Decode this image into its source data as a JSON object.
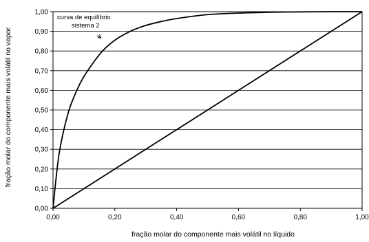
{
  "chart_data": {
    "type": "line",
    "title": "",
    "xlabel": "fração molar do componente mais volátil no líquido",
    "ylabel": "fração molar do componente mais volátil no vapor",
    "xlim": [
      0,
      1
    ],
    "ylim": [
      0,
      1
    ],
    "x_ticks": [
      "0,00",
      "0,20",
      "0,40",
      "0,60",
      "0,80",
      "1,00"
    ],
    "y_ticks": [
      "0,00",
      "0,10",
      "0,20",
      "0,30",
      "0,40",
      "0,50",
      "0,60",
      "0,70",
      "0,80",
      "0,90",
      "1,00"
    ],
    "grid": {
      "horizontal": true,
      "vertical": false
    },
    "series": [
      {
        "role": "equilibrium-curve",
        "x": [
          0,
          0.02,
          0.05,
          0.08,
          0.1,
          0.13,
          0.16,
          0.2,
          0.25,
          0.3,
          0.35,
          0.4,
          0.5,
          0.6,
          0.7,
          0.8,
          0.9,
          1.0
        ],
        "y": [
          0,
          0.28,
          0.49,
          0.61,
          0.67,
          0.74,
          0.8,
          0.855,
          0.9,
          0.93,
          0.95,
          0.965,
          0.985,
          0.993,
          0.997,
          0.999,
          1.0,
          1.0
        ]
      },
      {
        "role": "diagonal",
        "x": [
          0,
          1
        ],
        "y": [
          0,
          1
        ]
      }
    ],
    "annotation": {
      "lines": [
        "curva de equilíbrio",
        "sistema 2"
      ],
      "arrow_to": {
        "x": 0.155,
        "y": 0.865
      }
    }
  }
}
